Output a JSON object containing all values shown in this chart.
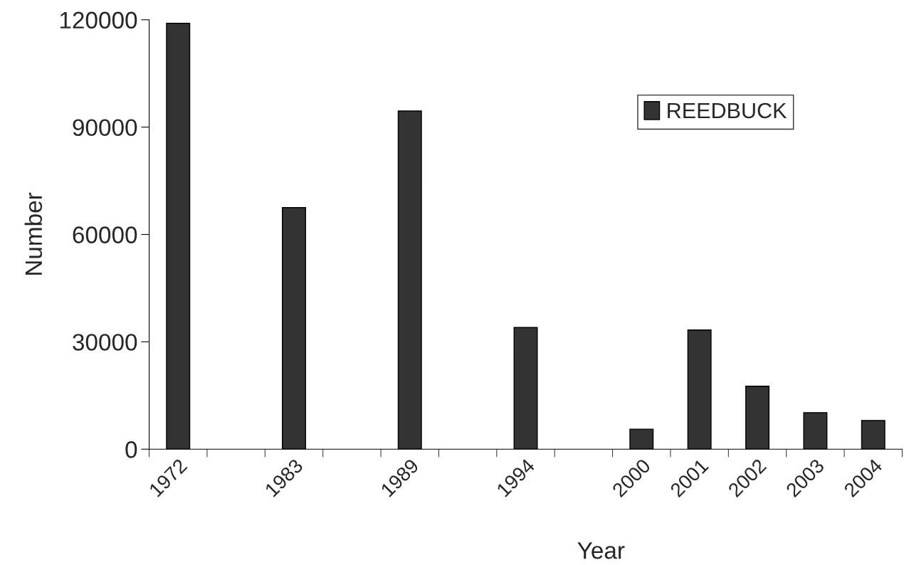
{
  "chart_data": {
    "type": "bar",
    "xlabel": "Year",
    "ylabel": "Number",
    "categories": [
      "1972",
      null,
      "1983",
      null,
      "1989",
      null,
      "1994",
      null,
      "2000",
      "2001",
      "2002",
      "2003",
      "2004"
    ],
    "series": [
      {
        "name": "REEDBUCK",
        "color": "#333333",
        "values": [
          119000,
          null,
          67500,
          null,
          94500,
          null,
          34000,
          null,
          5600,
          33300,
          17600,
          10200,
          8000
        ]
      }
    ],
    "ylim": [
      0,
      120000
    ],
    "yticks": [
      0,
      30000,
      60000,
      90000,
      120000
    ],
    "grid": false,
    "legend": "top right"
  }
}
